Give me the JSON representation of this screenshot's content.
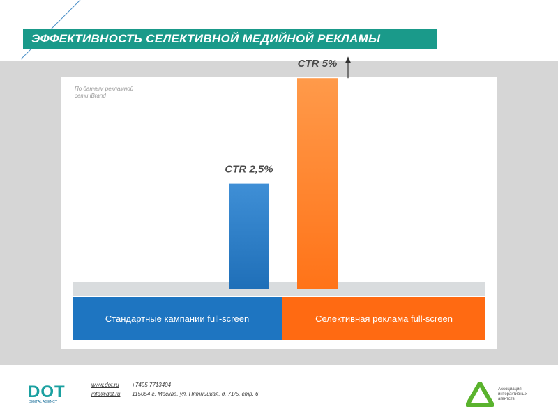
{
  "header": {
    "title": "ЭФФЕКТИВНОСТЬ СЕЛЕКТИВНОЙ МЕДИЙНОЙ РЕКЛАМЫ"
  },
  "note": {
    "line1": "По данным рекламной",
    "line2": "сети iBrand"
  },
  "chart_data": {
    "type": "bar",
    "categories": [
      "Стандартные кампании full-screen",
      "Селективная реклама full-screen"
    ],
    "values": [
      2.5,
      5
    ],
    "value_labels": [
      "CTR 2,5%",
      "CTR 5%"
    ],
    "colors": [
      "#1f6fb8",
      "#ff7318"
    ],
    "band_colors": [
      "#1e75c1",
      "#ff6a12"
    ],
    "ylim": [
      0,
      5.4
    ],
    "arrow_on": [
      false,
      true
    ]
  },
  "footer": {
    "website": "www.dot.ru",
    "phone": "+7495 7713404",
    "email": "info@dot.ru",
    "address": "115054 г. Москва, ул. Пятницкая, д. 71/5, стр. 6",
    "logo_text": "DOT",
    "logo_sub": "DIGITAL AGENCY",
    "assoc_line1": "Ассоциация",
    "assoc_line2": "интерактивных",
    "assoc_line3": "агентств"
  }
}
